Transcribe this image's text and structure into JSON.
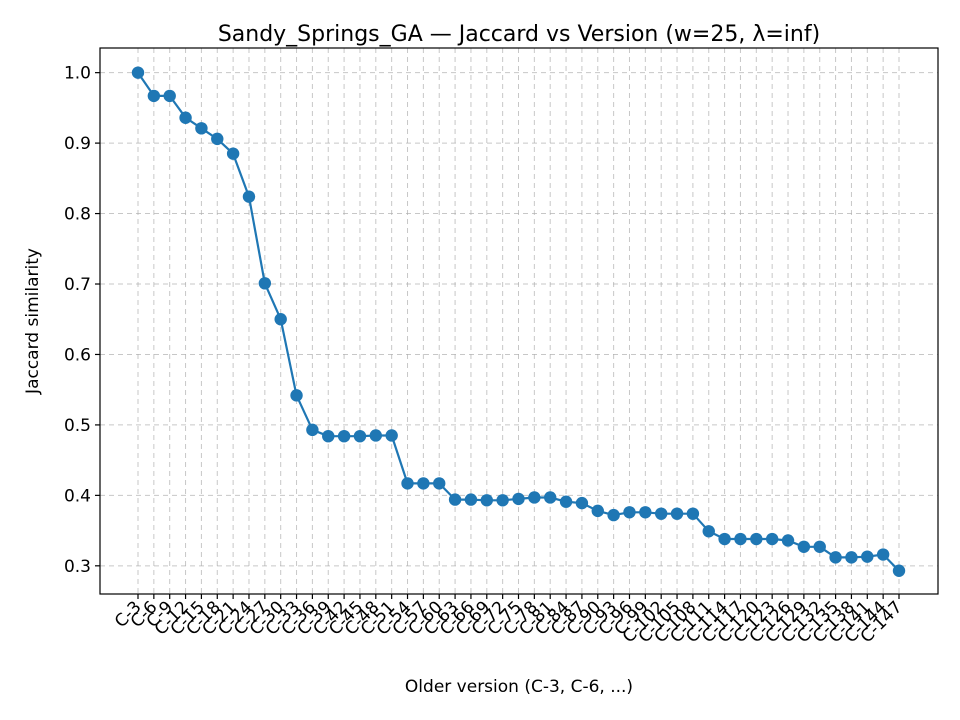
{
  "chart_data": {
    "type": "line",
    "title": "Sandy_Springs_GA — Jaccard vs Version (w=25, λ=inf)",
    "xlabel": "Older version (C-3, C-6, ...)",
    "ylabel": "Jaccard similarity",
    "ylim": [
      0.26,
      1.035
    ],
    "yticks": [
      0.3,
      0.4,
      0.5,
      0.6,
      0.7,
      0.8,
      0.9,
      1.0
    ],
    "ytick_labels": [
      "0.3",
      "0.4",
      "0.5",
      "0.6",
      "0.7",
      "0.8",
      "0.9",
      "1.0"
    ],
    "grid": true,
    "series_color": "#1f77b4",
    "categories": [
      "C-3",
      "C-6",
      "C-9",
      "C-12",
      "C-15",
      "C-18",
      "C-21",
      "C-24",
      "C-27",
      "C-30",
      "C-33",
      "C-36",
      "C-39",
      "C-42",
      "C-45",
      "C-48",
      "C-51",
      "C-54",
      "C-57",
      "C-60",
      "C-63",
      "C-66",
      "C-69",
      "C-72",
      "C-75",
      "C-78",
      "C-81",
      "C-84",
      "C-87",
      "C-90",
      "C-93",
      "C-96",
      "C-99",
      "C-102",
      "C-105",
      "C-108",
      "C-111",
      "C-114",
      "C-117",
      "C-120",
      "C-123",
      "C-126",
      "C-129",
      "C-132",
      "C-135",
      "C-138",
      "C-141",
      "C-144",
      "C-147"
    ],
    "series": [
      {
        "values": [
          1.0,
          0.967,
          0.967,
          0.936,
          0.921,
          0.906,
          0.885,
          0.824,
          0.701,
          0.65,
          0.542,
          0.493,
          0.484,
          0.484,
          0.484,
          0.485,
          0.485,
          0.417,
          0.417,
          0.417,
          0.394,
          0.394,
          0.393,
          0.393,
          0.395,
          0.397,
          0.397,
          0.391,
          0.389,
          0.378,
          0.372,
          0.376,
          0.376,
          0.374,
          0.374,
          0.374,
          0.349,
          0.338,
          0.338,
          0.338,
          0.338,
          0.336,
          0.327,
          0.327,
          0.312,
          0.312,
          0.313,
          0.316,
          0.293
        ]
      }
    ]
  }
}
